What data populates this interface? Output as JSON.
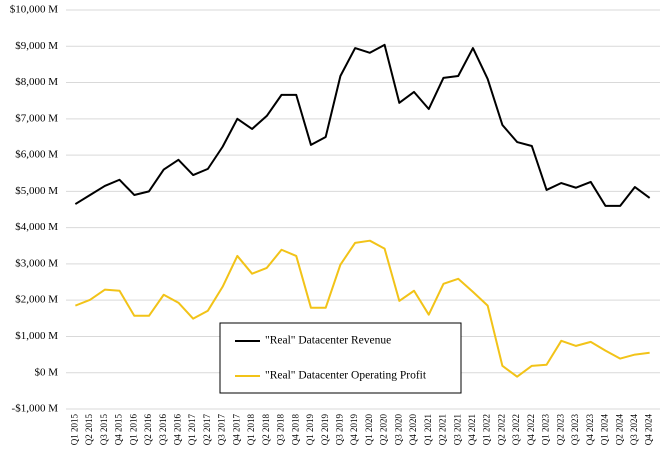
{
  "chart_data": {
    "type": "line",
    "categories": [
      "Q1 2015",
      "Q2 2015",
      "Q3 2015",
      "Q4 2015",
      "Q1 2016",
      "Q2 2016",
      "Q3 2016",
      "Q4 2016",
      "Q1 2017",
      "Q2 2017",
      "Q3 2017",
      "Q4 2017",
      "Q1 2018",
      "Q2 2018",
      "Q3 2018",
      "Q4 2018",
      "Q1 2019",
      "Q2 2019",
      "Q3 2019",
      "Q4 2019",
      "Q1 2020",
      "Q2 2020",
      "Q3 2020",
      "Q4 2020",
      "Q1 2021",
      "Q2 2021",
      "Q3 2021",
      "Q4 2021",
      "Q1 2022",
      "Q2 2022",
      "Q3 2022",
      "Q4 2022",
      "Q1 2023",
      "Q2 2023",
      "Q3 2023",
      "Q4 2023",
      "Q1 2024",
      "Q2 2024",
      "Q3 2024",
      "Q4 2024"
    ],
    "series": [
      {
        "name": "\"Real\" Datacenter Revenue",
        "color": "#000000",
        "values": [
          4650,
          4900,
          5150,
          5320,
          4900,
          5000,
          5600,
          5870,
          5450,
          5620,
          6230,
          7000,
          6720,
          7080,
          7660,
          7660,
          6280,
          6500,
          8180,
          8950,
          8820,
          9040,
          7440,
          7740,
          7270,
          8130,
          8180,
          8950,
          8100,
          6830,
          6360,
          6250,
          5040,
          5230,
          5100,
          5260,
          4600,
          4600,
          5120,
          4820
        ]
      },
      {
        "name": "\"Real\" Datacenter Operating Profit",
        "color": "#f2c318",
        "values": [
          1850,
          2010,
          2290,
          2260,
          1570,
          1570,
          2150,
          1930,
          1490,
          1710,
          2370,
          3220,
          2730,
          2890,
          3390,
          3220,
          1790,
          1790,
          2980,
          3580,
          3640,
          3420,
          1980,
          2260,
          1600,
          2450,
          2590,
          2230,
          1850,
          190,
          -110,
          190,
          220,
          880,
          740,
          850,
          610,
          390,
          500,
          550
        ]
      }
    ],
    "ylim": [
      -1000,
      10000
    ],
    "yticks": [
      {
        "value": -1000,
        "label": "-$1,000 M"
      },
      {
        "value": 0,
        "label": "$0 M"
      },
      {
        "value": 1000,
        "label": "$1,000 M"
      },
      {
        "value": 2000,
        "label": "$2,000 M"
      },
      {
        "value": 3000,
        "label": "$3,000 M"
      },
      {
        "value": 4000,
        "label": "$4,000 M"
      },
      {
        "value": 5000,
        "label": "$5,000 M"
      },
      {
        "value": 6000,
        "label": "$6,000 M"
      },
      {
        "value": 7000,
        "label": "$7,000 M"
      },
      {
        "value": 8000,
        "label": "$8,000 M"
      },
      {
        "value": 9000,
        "label": "$9,000 M"
      },
      {
        "value": 10000,
        "label": "$10,000 M"
      }
    ],
    "grid": true
  }
}
